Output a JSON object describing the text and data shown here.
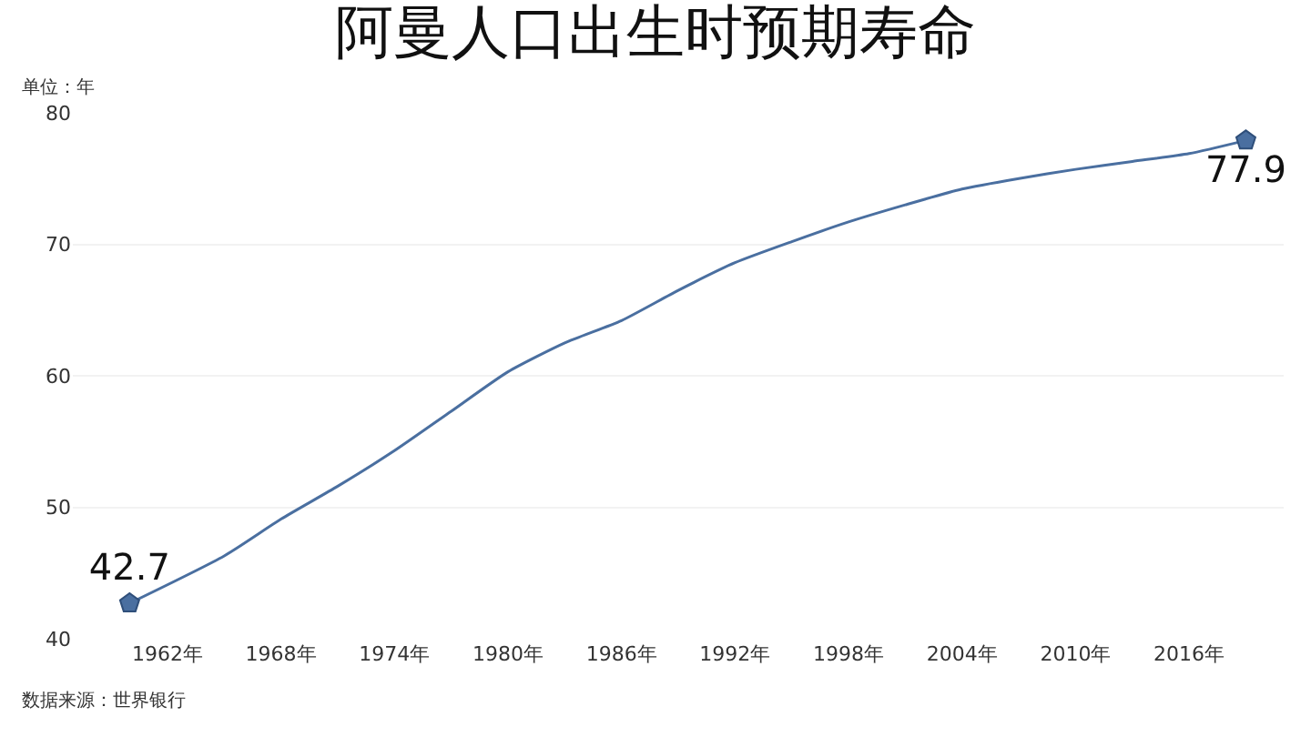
{
  "chart_data": {
    "type": "line",
    "title": "阿曼人口出生时预期寿命",
    "ylabel": "单位：年",
    "annotations": [
      "数据来源：世界银行"
    ],
    "x": [
      1960,
      1965,
      1968,
      1971,
      1974,
      1977,
      1980,
      1983,
      1986,
      1989,
      1992,
      1995,
      1998,
      2001,
      2004,
      2007,
      2010,
      2013,
      2016,
      2019
    ],
    "series": [
      {
        "color": "#4a6fa0",
        "values": [
          42.7,
          46.3,
          49.1,
          51.6,
          54.3,
          57.3,
          60.3,
          62.5,
          64.2,
          66.5,
          68.6,
          70.2,
          71.7,
          73.0,
          74.2,
          75.0,
          75.7,
          76.3,
          76.9,
          77.9
        ],
        "value_labels": [
          "42.7",
          null,
          null,
          null,
          null,
          null,
          null,
          null,
          null,
          null,
          null,
          null,
          null,
          null,
          null,
          null,
          null,
          null,
          null,
          "77.9"
        ]
      }
    ],
    "xlim": [
      1957,
      2021
    ],
    "xticks": [
      {
        "value": 1962,
        "label": "1962年"
      },
      {
        "value": 1968,
        "label": "1968年"
      },
      {
        "value": 1974,
        "label": "1974年"
      },
      {
        "value": 1980,
        "label": "1980年"
      },
      {
        "value": 1986,
        "label": "1986年"
      },
      {
        "value": 1992,
        "label": "1992年"
      },
      {
        "value": 1998,
        "label": "1998年"
      },
      {
        "value": 2004,
        "label": "2004年"
      },
      {
        "value": 2010,
        "label": "2010年"
      },
      {
        "value": 2016,
        "label": "2016年"
      }
    ],
    "ylim": [
      40,
      80
    ],
    "yticks": [
      40,
      50,
      60,
      70,
      80
    ],
    "grid": "y"
  }
}
